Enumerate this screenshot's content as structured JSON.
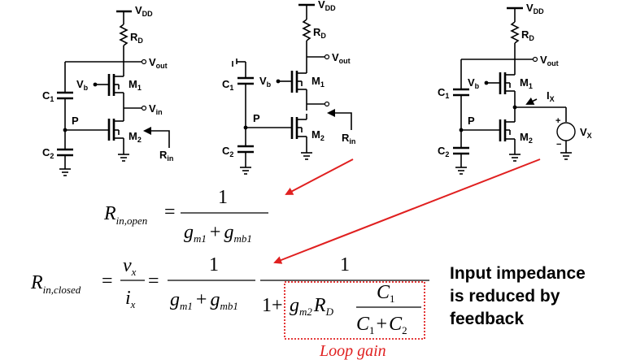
{
  "circuits": [
    {
      "vdd": "V",
      "vdd_sub": "DD",
      "rd": "R",
      "rd_sub": "D",
      "vout": "V",
      "vout_sub": "out",
      "vb": "V",
      "vb_sub": "b",
      "m1": "M",
      "m1_sub": "1",
      "vin": "V",
      "vin_sub": "in",
      "p": "P",
      "m2": "M",
      "m2_sub": "2",
      "c1": "C",
      "c1_sub": "1",
      "c2": "C",
      "c2_sub": "2",
      "rin": "R",
      "rin_sub": "in"
    },
    {
      "vdd": "V",
      "vdd_sub": "DD",
      "rd": "R",
      "rd_sub": "D",
      "vout": "V",
      "vout_sub": "out",
      "vb": "V",
      "vb_sub": "b",
      "m1": "M",
      "m1_sub": "1",
      "p": "P",
      "m2": "M",
      "m2_sub": "2",
      "c1": "C",
      "c1_sub": "1",
      "c2": "C",
      "c2_sub": "2",
      "rin": "R",
      "rin_sub": "in"
    },
    {
      "vdd": "V",
      "vdd_sub": "DD",
      "rd": "R",
      "rd_sub": "D",
      "vout": "V",
      "vout_sub": "out",
      "vb": "V",
      "vb_sub": "b",
      "m1": "M",
      "m1_sub": "1",
      "ix": "I",
      "ix_sub": "X",
      "p": "P",
      "m2": "M",
      "m2_sub": "2",
      "c1": "C",
      "c1_sub": "1",
      "c2": "C",
      "c2_sub": "2",
      "vx": "V",
      "vx_sub": "X",
      "plus": "+",
      "minus": "−"
    }
  ],
  "equations": {
    "open": {
      "lhs": "R",
      "lhs_sub": "in,open",
      "eq": "=",
      "num": "1",
      "den_g1": "g",
      "den_g1_sub": "m1",
      "plus": "+",
      "den_g2": "g",
      "den_g2_sub": "mb1"
    },
    "closed": {
      "lhs": "R",
      "lhs_sub": "in,closed",
      "eq1": "=",
      "vx": "v",
      "vx_sub": "x",
      "ix": "i",
      "ix_sub": "x",
      "eq2": "=",
      "num1": "1",
      "den_g1": "g",
      "den_g1_sub": "m1",
      "plus1": "+",
      "den_g2": "g",
      "den_g2_sub": "mb1",
      "num2": "1",
      "one": "1",
      "plus2": "+",
      "gm2": "g",
      "gm2_sub": "m2",
      "rd": "R",
      "rd_sub": "D",
      "c1_num": "C",
      "c1_num_sub": "1",
      "c1_den": "C",
      "c1_den_sub": "1",
      "plus3": "+",
      "c2_den": "C",
      "c2_den_sub": "2"
    },
    "loop_gain_label": "Loop gain"
  },
  "caption": {
    "line1": "Input impedance",
    "line2": "is reduced by",
    "line3": "feedback"
  },
  "colors": {
    "arrow": "#e02020",
    "loop_box": "#e02020",
    "loop_label": "#e02020"
  }
}
